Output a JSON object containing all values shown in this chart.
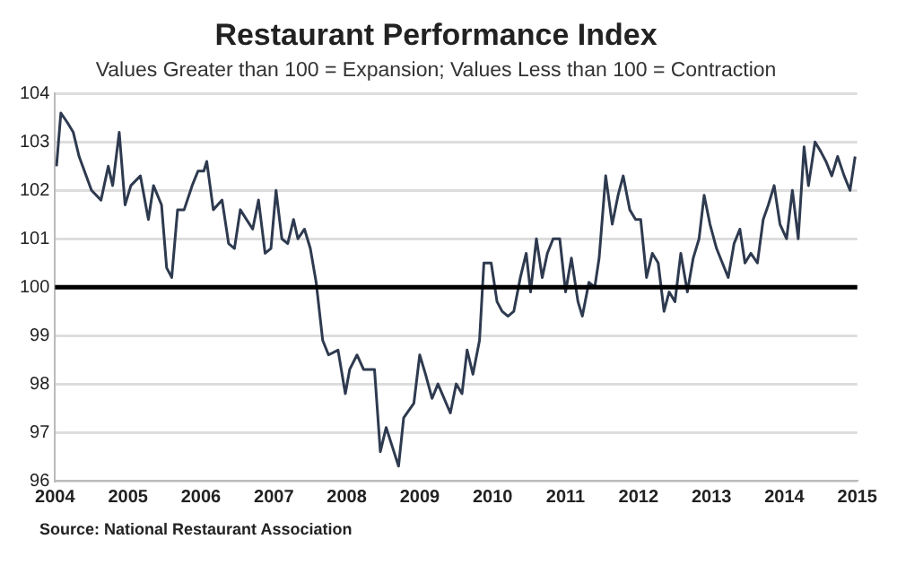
{
  "chart_data": {
    "type": "line",
    "title": "Restaurant Performance Index",
    "subtitle": "Values Greater than 100 = Expansion; Values Less than 100 = Contraction",
    "annotations": [
      "Source: National Restaurant Association"
    ],
    "x": [
      2004.02,
      2004.08,
      2004.17,
      2004.25,
      2004.33,
      2004.5,
      2004.63,
      2004.73,
      2004.79,
      2004.88,
      2004.96,
      2005.04,
      2005.17,
      2005.28,
      2005.35,
      2005.46,
      2005.53,
      2005.6,
      2005.68,
      2005.77,
      2005.88,
      2005.96,
      2006.04,
      2006.08,
      2006.17,
      2006.29,
      2006.38,
      2006.46,
      2006.54,
      2006.71,
      2006.79,
      2006.88,
      2006.96,
      2007.03,
      2007.11,
      2007.19,
      2007.27,
      2007.33,
      2007.42,
      2007.5,
      2007.58,
      2007.67,
      2007.75,
      2007.88,
      2007.98,
      2008.04,
      2008.14,
      2008.23,
      2008.38,
      2008.46,
      2008.54,
      2008.71,
      2008.78,
      2008.92,
      2009.0,
      2009.08,
      2009.17,
      2009.25,
      2009.42,
      2009.5,
      2009.58,
      2009.65,
      2009.73,
      2009.82,
      2009.88,
      2009.98,
      2010.06,
      2010.13,
      2010.21,
      2010.29,
      2010.38,
      2010.46,
      2010.52,
      2010.6,
      2010.68,
      2010.75,
      2010.83,
      2010.92,
      2011.0,
      2011.08,
      2011.17,
      2011.23,
      2011.32,
      2011.4,
      2011.46,
      2011.55,
      2011.64,
      2011.72,
      2011.79,
      2011.88,
      2011.96,
      2012.03,
      2012.11,
      2012.19,
      2012.27,
      2012.35,
      2012.42,
      2012.5,
      2012.58,
      2012.67,
      2012.75,
      2012.83,
      2012.9,
      2012.98,
      2013.07,
      2013.15,
      2013.23,
      2013.31,
      2013.39,
      2013.46,
      2013.54,
      2013.63,
      2013.71,
      2013.78,
      2013.86,
      2013.94,
      2014.03,
      2014.11,
      2014.19,
      2014.27,
      2014.33,
      2014.42,
      2014.5,
      2014.57,
      2014.65,
      2014.73,
      2014.82,
      2014.9,
      2014.97
    ],
    "series": [
      {
        "color": "#2e3a4f",
        "values": [
          102.5,
          103.6,
          103.4,
          103.2,
          102.7,
          102.0,
          101.8,
          102.5,
          102.1,
          103.2,
          101.7,
          102.1,
          102.3,
          101.4,
          102.1,
          101.7,
          100.4,
          100.2,
          101.6,
          101.6,
          102.1,
          102.4,
          102.4,
          102.6,
          101.6,
          101.8,
          100.9,
          100.8,
          101.6,
          101.2,
          101.8,
          100.7,
          100.8,
          102.0,
          101.0,
          100.9,
          101.4,
          101.0,
          101.2,
          100.8,
          100.1,
          98.9,
          98.6,
          98.7,
          97.8,
          98.3,
          98.6,
          98.3,
          98.3,
          96.6,
          97.1,
          96.3,
          97.3,
          97.6,
          98.6,
          98.2,
          97.7,
          98.0,
          97.4,
          98.0,
          97.8,
          98.7,
          98.2,
          98.9,
          100.5,
          100.5,
          99.7,
          99.5,
          99.4,
          99.5,
          100.2,
          100.7,
          99.9,
          101.0,
          100.2,
          100.7,
          101.0,
          101.0,
          99.9,
          100.6,
          99.7,
          99.4,
          100.1,
          100.0,
          100.6,
          102.3,
          101.3,
          101.9,
          102.3,
          101.6,
          101.4,
          101.4,
          100.2,
          100.7,
          100.5,
          99.5,
          99.9,
          99.7,
          100.7,
          99.9,
          100.6,
          101.0,
          101.9,
          101.3,
          100.8,
          100.5,
          100.2,
          100.9,
          101.2,
          100.5,
          100.7,
          100.5,
          101.4,
          101.7,
          102.1,
          101.3,
          101.0,
          102.0,
          101.0,
          102.9,
          102.1,
          103.0,
          102.8,
          102.6,
          102.3,
          102.7,
          102.3,
          102.0,
          102.7
        ]
      }
    ],
    "xlim": [
      2004,
      2015
    ],
    "xticks": [
      2004,
      2005,
      2006,
      2007,
      2008,
      2009,
      2010,
      2011,
      2012,
      2013,
      2014,
      2015
    ],
    "ylim": [
      96,
      104
    ],
    "yticks": [
      96,
      97,
      98,
      99,
      100,
      101,
      102,
      103,
      104
    ],
    "grid": "y",
    "legend": false,
    "marker": "none",
    "line_style": "solid",
    "ref_lines": [
      {
        "axis": "y",
        "value": 100,
        "color": "#000000"
      }
    ]
  }
}
